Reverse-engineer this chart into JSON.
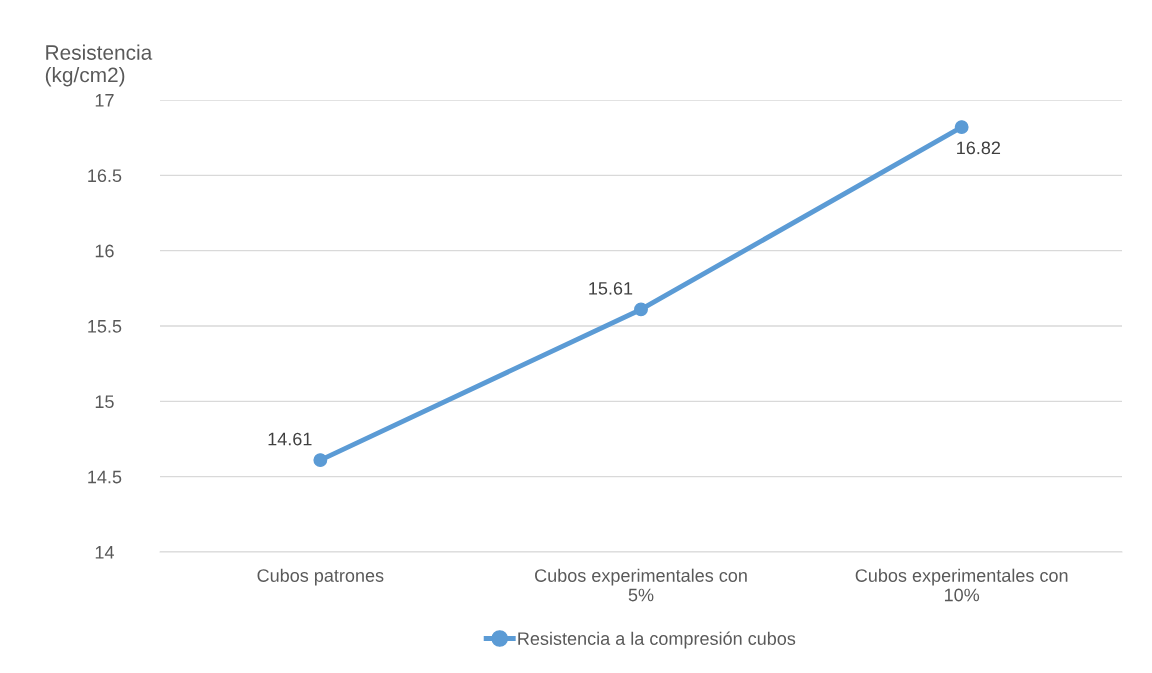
{
  "chart_data": {
    "type": "line",
    "ylabel": "Resistencia\n(kg/cm2)",
    "categories": [
      "Cubos patrones",
      "Cubos experimentales con 5%",
      "Cubos experimentales con 10%"
    ],
    "series": [
      {
        "name": "Resistencia a la compresión cubos",
        "color": "#5b9bd5",
        "values": [
          14.61,
          15.61,
          16.82
        ]
      }
    ],
    "ylim": [
      14,
      17
    ],
    "yticks": [
      14,
      14.5,
      15,
      15.5,
      16,
      16.5,
      17
    ],
    "grid": "y",
    "legend": "bottom",
    "marker": "circle",
    "line_style": "solid",
    "data_labels": true
  }
}
